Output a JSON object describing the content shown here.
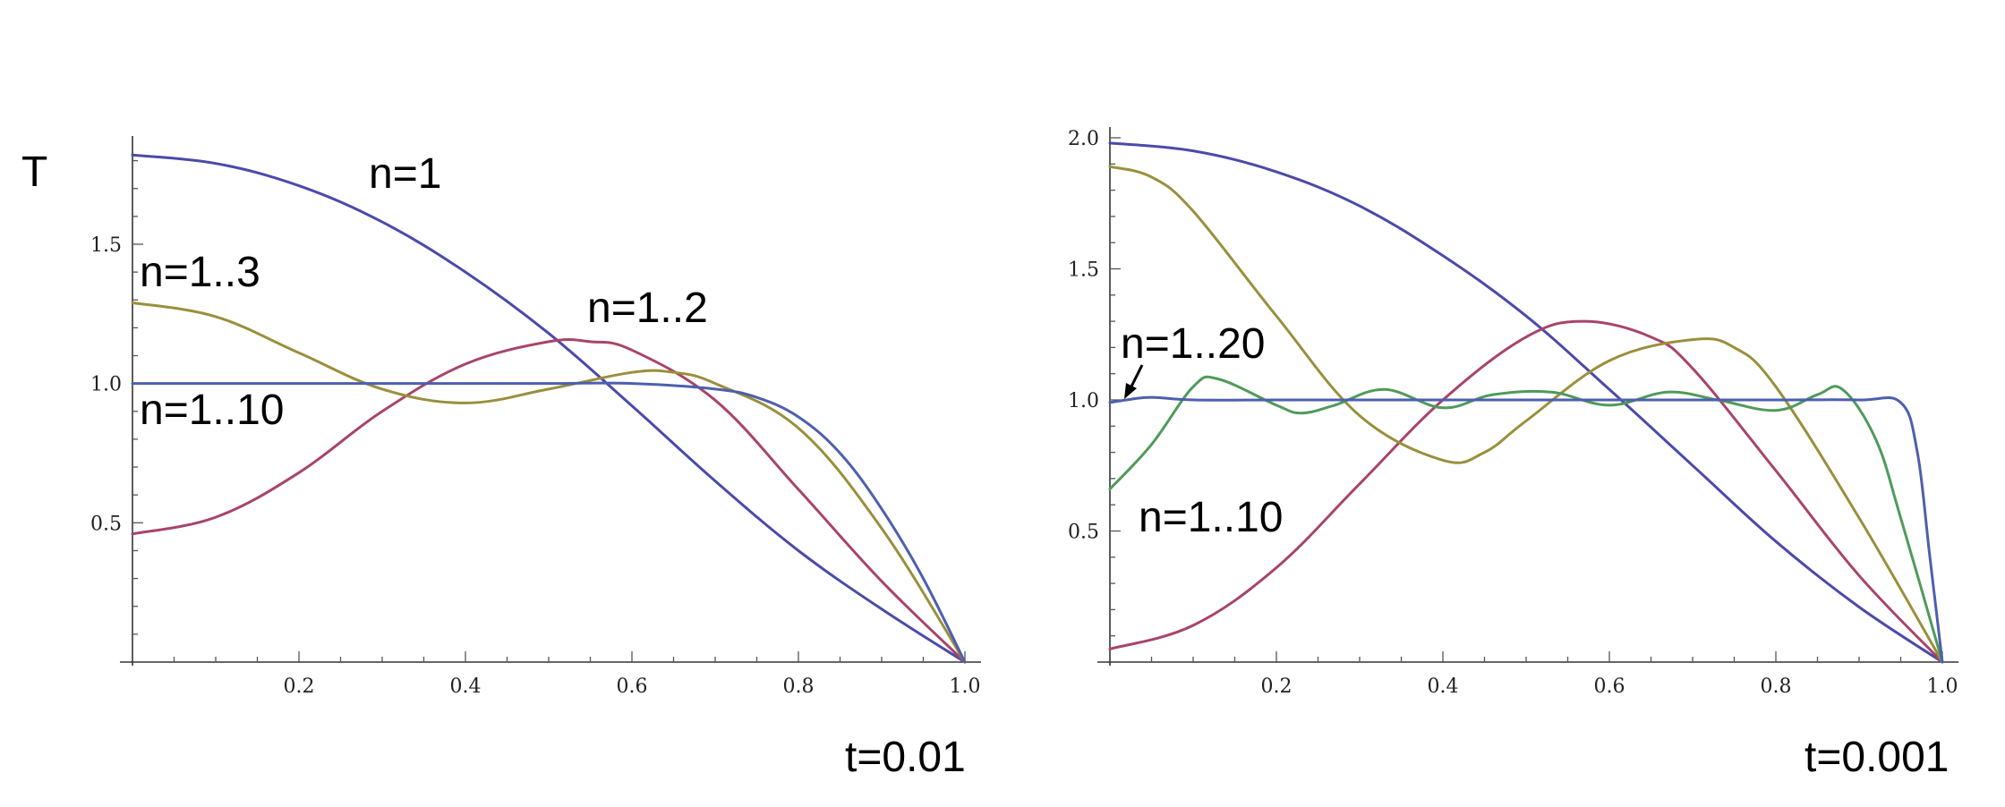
{
  "chart_data": [
    {
      "type": "line",
      "title": "",
      "ylabel": "T",
      "xlabel": "",
      "caption": "t=0.01",
      "xlim": [
        0,
        1.0
      ],
      "ylim": [
        0,
        1.85
      ],
      "x_ticks": [
        0.2,
        0.4,
        0.6,
        0.8,
        1.0
      ],
      "x_tick_labels": [
        "0.2",
        "0.4",
        "0.6",
        "0.8",
        "1.0"
      ],
      "y_ticks": [
        0.5,
        1.0,
        1.5
      ],
      "y_tick_labels": [
        "0.5",
        "1.0",
        "1.5"
      ],
      "grid": false,
      "series": [
        {
          "color": "#4a4aab",
          "x": [
            0,
            0.1,
            0.2,
            0.3,
            0.4,
            0.5,
            0.6,
            0.7,
            0.8,
            0.9,
            1.0
          ],
          "values": [
            1.82,
            1.79,
            1.71,
            1.58,
            1.4,
            1.18,
            0.92,
            0.65,
            0.4,
            0.19,
            0.0
          ]
        },
        {
          "color": "#a8446a",
          "x": [
            0,
            0.1,
            0.2,
            0.3,
            0.4,
            0.5,
            0.55,
            0.6,
            0.7,
            0.8,
            0.9,
            1.0
          ],
          "values": [
            0.46,
            0.52,
            0.68,
            0.9,
            1.07,
            1.15,
            1.15,
            1.12,
            0.94,
            0.62,
            0.29,
            0.0
          ]
        },
        {
          "color": "#9a8f3c",
          "x": [
            0,
            0.1,
            0.2,
            0.3,
            0.4,
            0.5,
            0.6,
            0.65,
            0.7,
            0.8,
            0.9,
            1.0
          ],
          "values": [
            1.29,
            1.24,
            1.11,
            0.98,
            0.93,
            0.98,
            1.04,
            1.04,
            1.0,
            0.84,
            0.48,
            0.0
          ]
        },
        {
          "color": "#4d5fae",
          "x": [
            0,
            0.1,
            0.2,
            0.3,
            0.4,
            0.5,
            0.6,
            0.7,
            0.75,
            0.8,
            0.85,
            0.9,
            0.95,
            1.0
          ],
          "values": [
            1.0,
            1.0,
            1.0,
            1.0,
            1.0,
            1.0,
            1.0,
            0.98,
            0.95,
            0.88,
            0.75,
            0.55,
            0.3,
            0.0
          ]
        }
      ],
      "annotations": [
        "n=1",
        "n=1..3",
        "n=1..2",
        "n=1..10"
      ]
    },
    {
      "type": "line",
      "title": "",
      "ylabel": "",
      "xlabel": "",
      "caption": "t=0.001",
      "xlim": [
        0,
        1.0
      ],
      "ylim": [
        0,
        2.0
      ],
      "x_ticks": [
        0.2,
        0.4,
        0.6,
        0.8,
        1.0
      ],
      "x_tick_labels": [
        "0.2",
        "0.4",
        "0.6",
        "0.8",
        "1.0"
      ],
      "y_ticks": [
        0.5,
        1.0,
        1.5,
        2.0
      ],
      "y_tick_labels": [
        "0.5",
        "1.0",
        "1.5",
        "2.0"
      ],
      "grid": false,
      "series": [
        {
          "color": "#4a4aab",
          "x": [
            0,
            0.1,
            0.2,
            0.3,
            0.4,
            0.5,
            0.6,
            0.7,
            0.8,
            0.9,
            1.0
          ],
          "values": [
            1.98,
            1.95,
            1.87,
            1.74,
            1.55,
            1.32,
            1.04,
            0.75,
            0.46,
            0.21,
            0.0
          ]
        },
        {
          "color": "#a8446a",
          "x": [
            0,
            0.1,
            0.2,
            0.3,
            0.4,
            0.5,
            0.57,
            0.65,
            0.7,
            0.8,
            0.9,
            1.0
          ],
          "values": [
            0.05,
            0.14,
            0.36,
            0.68,
            1.0,
            1.24,
            1.3,
            1.24,
            1.12,
            0.73,
            0.33,
            0.0
          ]
        },
        {
          "color": "#9a8f3c",
          "x": [
            0,
            0.05,
            0.1,
            0.2,
            0.3,
            0.4,
            0.45,
            0.5,
            0.6,
            0.7,
            0.75,
            0.8,
            0.9,
            1.0
          ],
          "values": [
            1.89,
            1.85,
            1.72,
            1.32,
            0.94,
            0.77,
            0.8,
            0.92,
            1.15,
            1.23,
            1.2,
            1.05,
            0.55,
            0.0
          ]
        },
        {
          "color": "#4f9a5a",
          "x": [
            0,
            0.05,
            0.1,
            0.13,
            0.2,
            0.23,
            0.27,
            0.33,
            0.4,
            0.46,
            0.53,
            0.6,
            0.67,
            0.73,
            0.8,
            0.85,
            0.88,
            0.92,
            0.95,
            1.0
          ],
          "values": [
            0.66,
            0.83,
            1.05,
            1.08,
            0.98,
            0.95,
            0.98,
            1.04,
            0.97,
            1.02,
            1.03,
            0.98,
            1.03,
            1.0,
            0.96,
            1.02,
            1.04,
            0.85,
            0.55,
            0.0
          ]
        },
        {
          "color": "#4d5fae",
          "x": [
            0,
            0.02,
            0.05,
            0.1,
            0.2,
            0.3,
            0.4,
            0.5,
            0.6,
            0.7,
            0.8,
            0.9,
            0.95,
            0.97,
            0.985,
            1.0
          ],
          "values": [
            0.99,
            1.0,
            1.01,
            1.0,
            1.0,
            1.0,
            1.0,
            1.0,
            1.0,
            1.0,
            1.0,
            1.0,
            0.99,
            0.8,
            0.4,
            0.0
          ]
        }
      ],
      "annotations": [
        "n=1..20",
        "n=1..10"
      ]
    }
  ]
}
